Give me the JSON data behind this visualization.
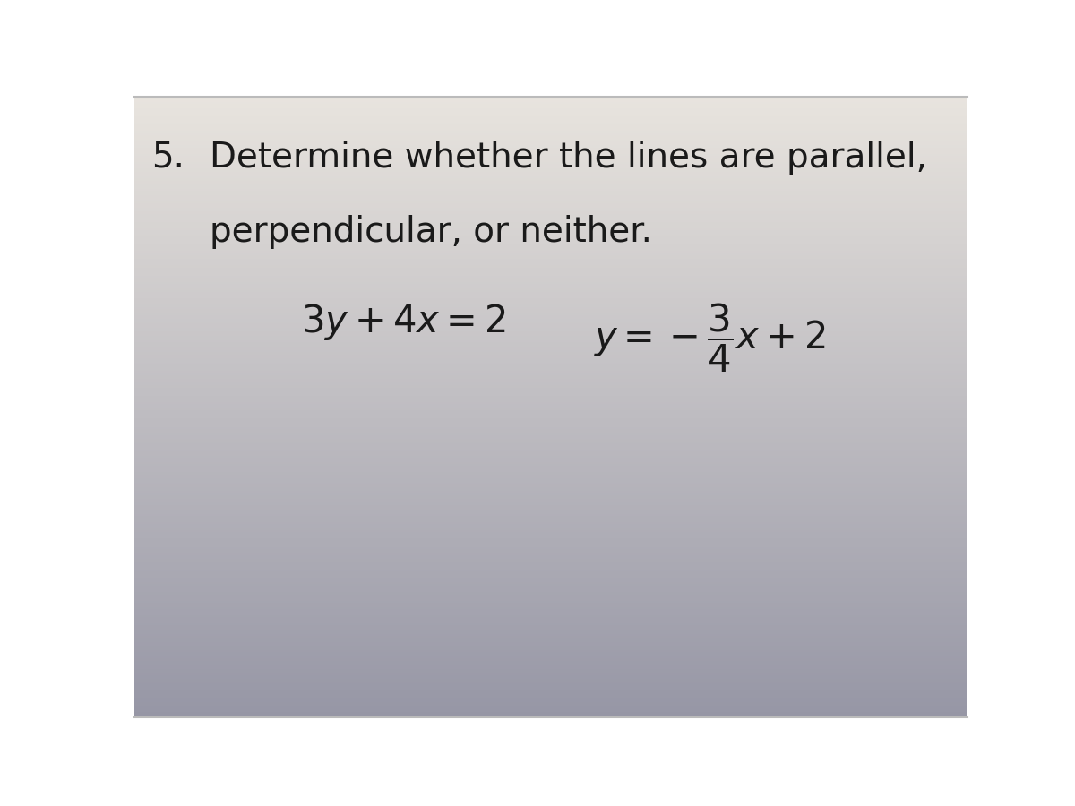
{
  "problem_number": "5.",
  "instruction_line1": "Determine whether the lines are parallel,",
  "instruction_line2": "perpendicular, or neither.",
  "text_color": "#1a1a1a",
  "font_size_number": 28,
  "font_size_instruction": 28,
  "font_size_equation": 30,
  "fig_width": 12,
  "fig_height": 9
}
